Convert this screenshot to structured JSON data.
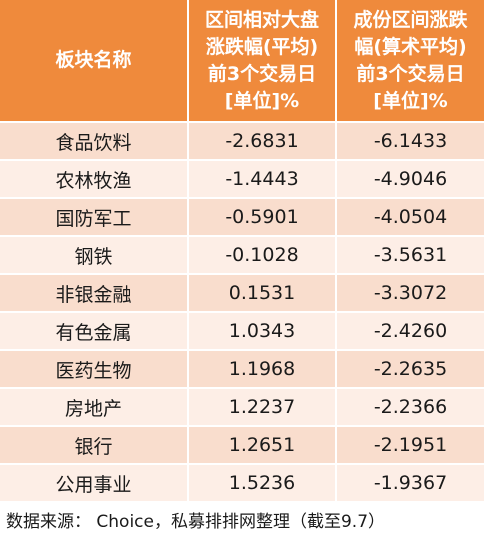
{
  "headers": {
    "col1": [
      "板块名称"
    ],
    "col2": [
      "区间相对大盘",
      "涨跌幅(平均)",
      "前3个交易日",
      "[单位]%"
    ],
    "col3": [
      "成份区间涨跌",
      "幅(算术平均)",
      "前3个交易日",
      "[单位]%"
    ]
  },
  "rows": [
    {
      "name": "食品饮料",
      "v1": "-2.6831",
      "v2": "-6.1433"
    },
    {
      "name": "农林牧渔",
      "v1": "-1.4443",
      "v2": "-4.9046"
    },
    {
      "name": "国防军工",
      "v1": "-0.5901",
      "v2": "-4.0504"
    },
    {
      "name": "钢铁",
      "v1": "-0.1028",
      "v2": "-3.5631"
    },
    {
      "name": "非银金融",
      "v1": "0.1531",
      "v2": "-3.3072"
    },
    {
      "name": "有色金属",
      "v1": "1.0343",
      "v2": "-2.4260"
    },
    {
      "name": "医药生物",
      "v1": "1.1968",
      "v2": "-2.2635"
    },
    {
      "name": "房地产",
      "v1": "1.2237",
      "v2": "-2.2366"
    },
    {
      "name": "银行",
      "v1": "1.2651",
      "v2": "-2.1951"
    },
    {
      "name": "公用事业",
      "v1": "1.5236",
      "v2": "-1.9367"
    }
  ],
  "footer": "数据来源： Choice，私募排排网整理（截至9.7）",
  "colors": {
    "header_bg": "#ef8a3c",
    "row_odd": "#f9ddcd",
    "row_even": "#fdeee6"
  }
}
